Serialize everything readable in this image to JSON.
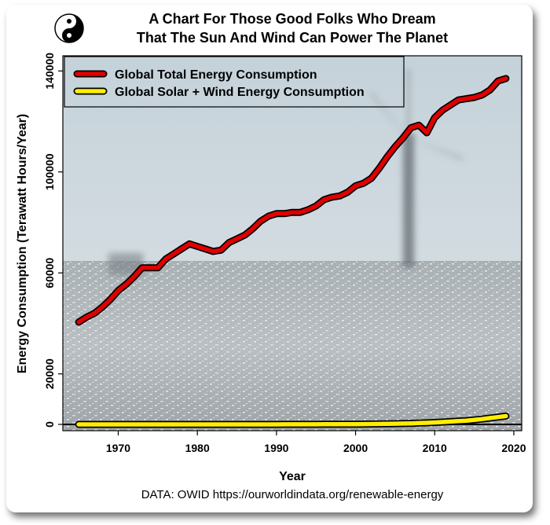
{
  "chart_data": {
    "type": "line",
    "title_line1": "A Chart For Those Good Folks Who Dream",
    "title_line2": "That The Sun And Wind Can Power The Planet",
    "xlabel": "Year",
    "ylabel": "Energy Consumption (Terawatt Hours/Year)",
    "source": "DATA: OWID https://ourworldindata.org/renewable-energy",
    "xlim": [
      1963,
      2021
    ],
    "ylim": [
      -2500,
      146000
    ],
    "x_ticks": [
      1970,
      1980,
      1990,
      2000,
      2010,
      2020
    ],
    "y_ticks": [
      0,
      20000,
      60000,
      100000,
      140000
    ],
    "legend_position": "top-left",
    "grid": false,
    "x": [
      1965,
      1966,
      1967,
      1968,
      1969,
      1970,
      1971,
      1972,
      1973,
      1974,
      1975,
      1976,
      1977,
      1978,
      1979,
      1980,
      1981,
      1982,
      1983,
      1984,
      1985,
      1986,
      1987,
      1988,
      1989,
      1990,
      1991,
      1992,
      1993,
      1994,
      1995,
      1996,
      1997,
      1998,
      1999,
      2000,
      2001,
      2002,
      2003,
      2004,
      2005,
      2006,
      2007,
      2008,
      2009,
      2010,
      2011,
      2012,
      2013,
      2014,
      2015,
      2016,
      2017,
      2018,
      2019
    ],
    "series": [
      {
        "name": "Global Total Energy Consumption",
        "color": "#e00000",
        "values": [
          40500,
          42500,
          44000,
          46500,
          49500,
          53000,
          55500,
          58500,
          62000,
          62000,
          62000,
          65500,
          67500,
          69500,
          71500,
          70500,
          69500,
          68500,
          69000,
          72000,
          73500,
          75000,
          77500,
          80500,
          82500,
          83500,
          83500,
          84000,
          84000,
          85000,
          86500,
          89000,
          90000,
          90500,
          92000,
          94500,
          95500,
          97500,
          101500,
          106000,
          110000,
          113500,
          117500,
          118500,
          115500,
          121500,
          124500,
          126500,
          128500,
          129000,
          129500,
          130500,
          132500,
          136000,
          137000
        ]
      },
      {
        "name": "Global Solar + Wind Energy Consumption",
        "color": "#ffee00",
        "values": [
          0,
          0,
          0,
          0,
          0,
          0,
          0,
          0,
          0,
          0,
          0,
          0,
          0,
          0,
          0,
          0,
          0,
          0,
          0,
          0,
          0,
          0,
          0,
          0,
          0,
          5,
          10,
          15,
          20,
          25,
          30,
          40,
          50,
          60,
          70,
          90,
          110,
          140,
          170,
          210,
          260,
          330,
          410,
          510,
          620,
          760,
          920,
          1100,
          1300,
          1500,
          1750,
          2100,
          2500,
          2900,
          3300
        ]
      }
    ]
  }
}
